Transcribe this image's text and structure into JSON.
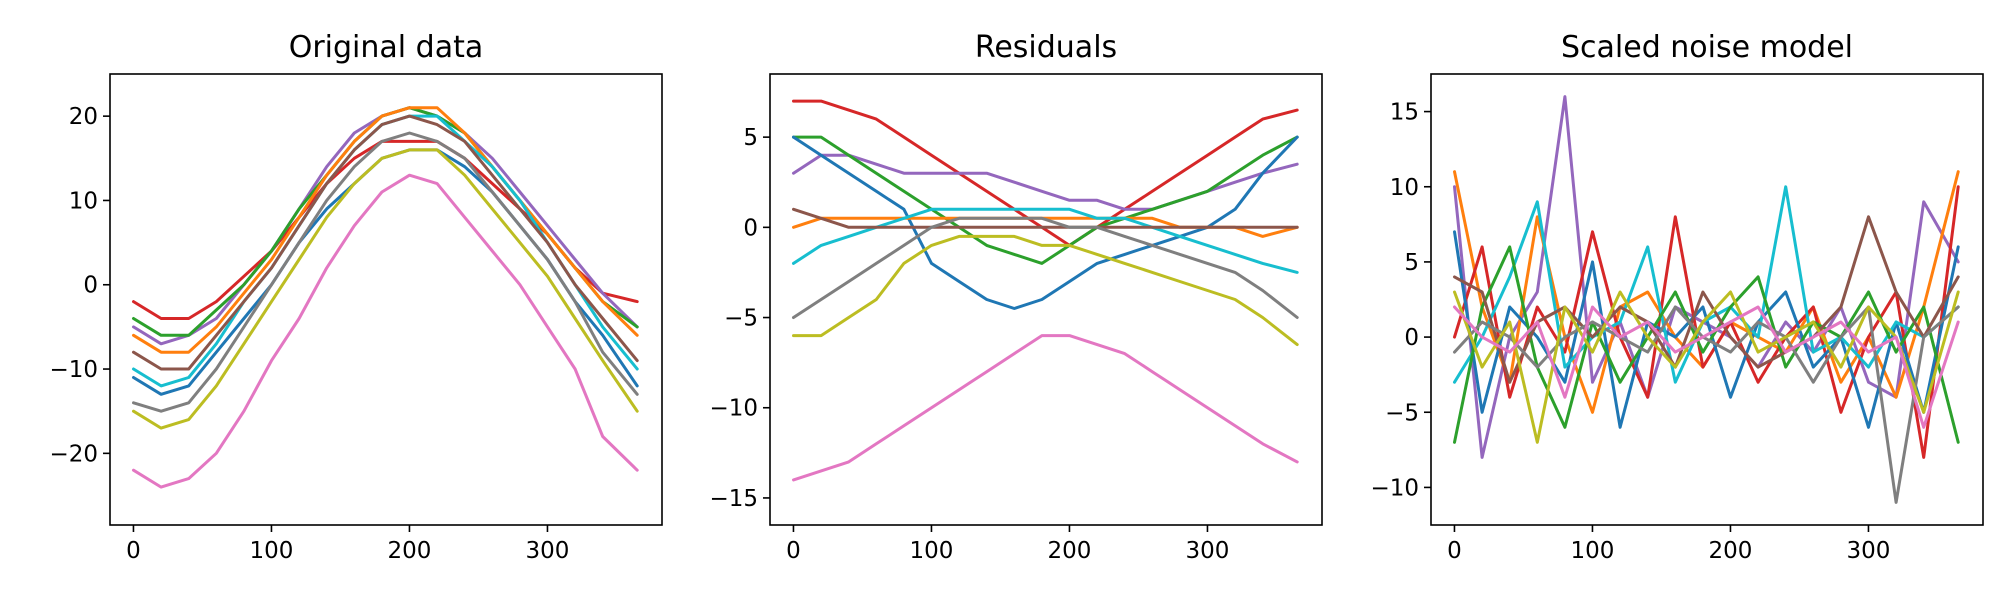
{
  "figure": {
    "colors": [
      "#1f77b4",
      "#ff7f0e",
      "#2ca02c",
      "#d62728",
      "#9467bd",
      "#8c564b",
      "#e377c2",
      "#7f7f7f",
      "#bcbd22",
      "#17becf"
    ]
  },
  "chart_data": [
    {
      "type": "line",
      "title": "Original data",
      "xlabel": "",
      "ylabel": "",
      "xlim": [
        -17,
        383
      ],
      "ylim": [
        -28.5,
        25
      ],
      "xticks": [
        0,
        100,
        200,
        300
      ],
      "yticks": [
        -20,
        -10,
        0,
        10,
        20
      ],
      "grid": false,
      "x": [
        0,
        20,
        40,
        60,
        80,
        100,
        120,
        140,
        160,
        180,
        200,
        220,
        240,
        260,
        280,
        300,
        320,
        340,
        365
      ],
      "series": [
        {
          "color": "#d62728",
          "values": [
            -2,
            -4,
            -4,
            -2,
            1,
            4,
            8,
            12,
            15,
            17,
            17,
            17,
            15,
            12,
            9,
            6,
            2,
            -1,
            -2
          ]
        },
        {
          "color": "#9467bd",
          "values": [
            -5,
            -7,
            -6,
            -4,
            0,
            4,
            9,
            14,
            18,
            20,
            21,
            20,
            18,
            15,
            11,
            7,
            3,
            -1,
            -5
          ]
        },
        {
          "color": "#2ca02c",
          "values": [
            -4,
            -6,
            -6,
            -3,
            0,
            4,
            9,
            13,
            17,
            20,
            21,
            20,
            18,
            14,
            10,
            6,
            2,
            -2,
            -5
          ]
        },
        {
          "color": "#ff7f0e",
          "values": [
            -6,
            -8,
            -8,
            -5,
            -1,
            3,
            8,
            13,
            17,
            20,
            21,
            21,
            18,
            14,
            10,
            6,
            2,
            -2,
            -6
          ]
        },
        {
          "color": "#17becf",
          "values": [
            -10,
            -12,
            -11,
            -7,
            -2,
            2,
            7,
            12,
            16,
            19,
            20,
            20,
            17,
            14,
            10,
            5,
            0,
            -5,
            -10
          ]
        },
        {
          "color": "#1f77b4",
          "values": [
            -11,
            -13,
            -12,
            -8,
            -4,
            0,
            5,
            9,
            12,
            15,
            16,
            16,
            14,
            11,
            7,
            3,
            -2,
            -6,
            -12
          ]
        },
        {
          "color": "#8c564b",
          "values": [
            -8,
            -10,
            -10,
            -6,
            -2,
            2,
            7,
            12,
            16,
            19,
            20,
            19,
            17,
            13,
            9,
            5,
            0,
            -4,
            -9
          ]
        },
        {
          "color": "#7f7f7f",
          "values": [
            -14,
            -15,
            -14,
            -10,
            -5,
            0,
            5,
            10,
            14,
            17,
            18,
            17,
            15,
            11,
            7,
            3,
            -2,
            -8,
            -13
          ]
        },
        {
          "color": "#bcbd22",
          "values": [
            -15,
            -17,
            -16,
            -12,
            -7,
            -2,
            3,
            8,
            12,
            15,
            16,
            16,
            13,
            9,
            5,
            1,
            -4,
            -9,
            -15
          ]
        },
        {
          "color": "#e377c2",
          "values": [
            -22,
            -24,
            -23,
            -20,
            -15,
            -9,
            -4,
            2,
            7,
            11,
            13,
            12,
            8,
            4,
            0,
            -5,
            -10,
            -18,
            -22
          ]
        }
      ]
    },
    {
      "type": "line",
      "title": "Residuals",
      "xlabel": "",
      "ylabel": "",
      "xlim": [
        -17,
        383
      ],
      "ylim": [
        -16.5,
        8.5
      ],
      "xticks": [
        0,
        100,
        200,
        300
      ],
      "yticks": [
        -15,
        -10,
        -5,
        0,
        5
      ],
      "grid": false,
      "x": [
        0,
        20,
        40,
        60,
        80,
        100,
        120,
        140,
        160,
        180,
        200,
        220,
        240,
        260,
        280,
        300,
        320,
        340,
        365
      ],
      "series": [
        {
          "color": "#d62728",
          "values": [
            7,
            7,
            6.5,
            6,
            5,
            4,
            3,
            2,
            1,
            0,
            -1,
            0,
            1,
            2,
            3,
            4,
            5,
            6,
            6.5
          ]
        },
        {
          "color": "#9467bd",
          "values": [
            3,
            4,
            4,
            3.5,
            3,
            3,
            3,
            3,
            2.5,
            2,
            1.5,
            1.5,
            1,
            1,
            1.5,
            2,
            2.5,
            3,
            3.5
          ]
        },
        {
          "color": "#2ca02c",
          "values": [
            5,
            5,
            4,
            3,
            2,
            1,
            0,
            -1,
            -1.5,
            -2,
            -1,
            0,
            0.5,
            1,
            1.5,
            2,
            3,
            4,
            5
          ]
        },
        {
          "color": "#1f77b4",
          "values": [
            5,
            4,
            3,
            2,
            1,
            -2,
            -3,
            -4,
            -4.5,
            -4,
            -3,
            -2,
            -1.5,
            -1,
            -0.5,
            0,
            1,
            3,
            5
          ]
        },
        {
          "color": "#ff7f0e",
          "values": [
            0,
            0.5,
            0.5,
            0.5,
            0.5,
            0.5,
            0.5,
            0.5,
            0.5,
            0.5,
            0.5,
            0.5,
            0.5,
            0.5,
            0,
            0,
            0,
            -0.5,
            0
          ]
        },
        {
          "color": "#17becf",
          "values": [
            -2,
            -1,
            -0.5,
            0,
            0.5,
            1,
            1,
            1,
            1,
            1,
            1,
            0.5,
            0.5,
            0,
            -0.5,
            -1,
            -1.5,
            -2,
            -2.5
          ]
        },
        {
          "color": "#8c564b",
          "values": [
            1,
            0.5,
            0,
            0,
            0,
            0,
            0,
            0,
            0,
            0,
            0,
            0,
            0,
            0,
            0,
            0,
            0,
            0,
            0
          ]
        },
        {
          "color": "#7f7f7f",
          "values": [
            -5,
            -4,
            -3,
            -2,
            -1,
            0,
            0.5,
            0.5,
            0.5,
            0.5,
            0,
            0,
            -0.5,
            -1,
            -1.5,
            -2,
            -2.5,
            -3.5,
            -5
          ]
        },
        {
          "color": "#bcbd22",
          "values": [
            -6,
            -6,
            -5,
            -4,
            -2,
            -1,
            -0.5,
            -0.5,
            -0.5,
            -1,
            -1,
            -1.5,
            -2,
            -2.5,
            -3,
            -3.5,
            -4,
            -5,
            -6.5
          ]
        },
        {
          "color": "#e377c2",
          "values": [
            -14,
            -13.5,
            -13,
            -12,
            -11,
            -10,
            -9,
            -8,
            -7,
            -6,
            -6,
            -6.5,
            -7,
            -8,
            -9,
            -10,
            -11,
            -12,
            -13
          ]
        }
      ]
    },
    {
      "type": "line",
      "title": "Scaled noise model",
      "xlabel": "",
      "ylabel": "",
      "xlim": [
        -17,
        383
      ],
      "ylim": [
        -12.5,
        17.5
      ],
      "xticks": [
        0,
        100,
        200,
        300
      ],
      "yticks": [
        -10,
        -5,
        0,
        5,
        10,
        15
      ],
      "grid": false,
      "x": [
        0,
        20,
        40,
        60,
        80,
        100,
        120,
        140,
        160,
        180,
        200,
        220,
        240,
        260,
        280,
        300,
        320,
        340,
        365
      ],
      "series": [
        {
          "color": "#9467bd",
          "values": [
            10,
            -8,
            0,
            3,
            16,
            -3,
            1,
            -4,
            2,
            1,
            0,
            -2,
            1,
            -1,
            2,
            -3,
            -4,
            9,
            5
          ]
        },
        {
          "color": "#ff7f0e",
          "values": [
            11,
            2,
            -3,
            8,
            0,
            -5,
            2,
            3,
            0,
            -2,
            1,
            0,
            -1,
            2,
            -3,
            0,
            -4,
            2,
            11
          ]
        },
        {
          "color": "#d62728",
          "values": [
            0,
            6,
            -4,
            2,
            -1,
            7,
            0,
            -4,
            8,
            -2,
            1,
            -3,
            0,
            2,
            -5,
            0,
            3,
            -8,
            10
          ]
        },
        {
          "color": "#1f77b4",
          "values": [
            7,
            -5,
            2,
            0,
            -3,
            5,
            -6,
            1,
            0,
            2,
            -4,
            1,
            3,
            -2,
            0,
            -6,
            1,
            -5,
            6
          ]
        },
        {
          "color": "#17becf",
          "values": [
            -3,
            0,
            4,
            9,
            -2,
            0,
            1,
            6,
            -3,
            1,
            2,
            0,
            10,
            -1,
            0,
            -2,
            1,
            0,
            2
          ]
        },
        {
          "color": "#2ca02c",
          "values": [
            -7,
            2,
            6,
            -2,
            -6,
            1,
            -3,
            0,
            3,
            -1,
            2,
            4,
            -2,
            1,
            0,
            3,
            -1,
            2,
            -7
          ]
        },
        {
          "color": "#8c564b",
          "values": [
            4,
            3,
            -3,
            1,
            2,
            0,
            2,
            1,
            -2,
            3,
            0,
            -2,
            -1,
            0,
            2,
            8,
            3,
            0,
            4
          ]
        },
        {
          "color": "#7f7f7f",
          "values": [
            -1,
            1,
            0,
            -2,
            0,
            1,
            0,
            -1,
            2,
            0,
            -1,
            1,
            0,
            -3,
            0,
            2,
            -11,
            0,
            2
          ]
        },
        {
          "color": "#bcbd22",
          "values": [
            3,
            -2,
            1,
            -7,
            2,
            -1,
            3,
            0,
            -2,
            1,
            3,
            -1,
            0,
            1,
            -2,
            2,
            0,
            -5,
            3
          ]
        },
        {
          "color": "#e377c2",
          "values": [
            2,
            0,
            -1,
            1,
            -4,
            2,
            0,
            1,
            -1,
            0,
            1,
            2,
            -1,
            0,
            1,
            -1,
            0,
            -6,
            1
          ]
        }
      ]
    }
  ]
}
